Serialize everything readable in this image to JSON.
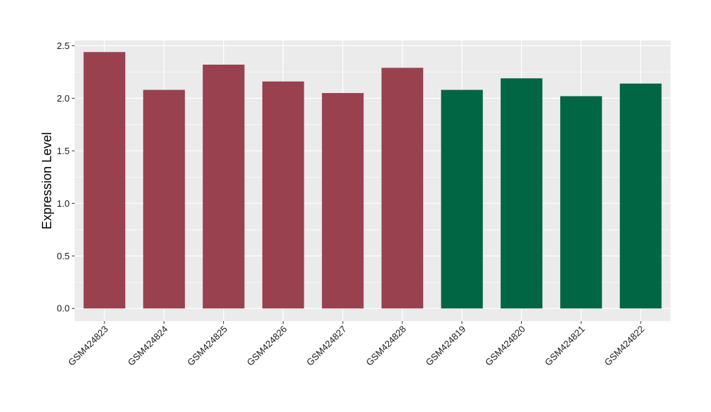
{
  "chart_data": {
    "type": "bar",
    "categories": [
      "GSM424823",
      "GSM424824",
      "GSM424825",
      "GSM424826",
      "GSM424827",
      "GSM424828",
      "GSM424819",
      "GSM424820",
      "GSM424821",
      "GSM424822"
    ],
    "values": [
      2.44,
      2.08,
      2.32,
      2.16,
      2.05,
      2.29,
      2.08,
      2.19,
      2.02,
      2.14
    ],
    "bar_colors": [
      "#99414f",
      "#99414f",
      "#99414f",
      "#99414f",
      "#99414f",
      "#99414f",
      "#006644",
      "#006644",
      "#006644",
      "#006644"
    ],
    "title": "",
    "xlabel": "",
    "ylabel": "Expression Level",
    "ylim": [
      -0.12,
      2.55
    ],
    "yticks": [
      0.0,
      0.5,
      1.0,
      1.5,
      2.0,
      2.5
    ],
    "ytick_labels": [
      "0.0",
      "0.5",
      "1.0",
      "1.5",
      "2.0",
      "2.5"
    ],
    "grid": true,
    "legend": false,
    "panel_background": "#ebebeb",
    "gridline_color": "#ffffff"
  }
}
